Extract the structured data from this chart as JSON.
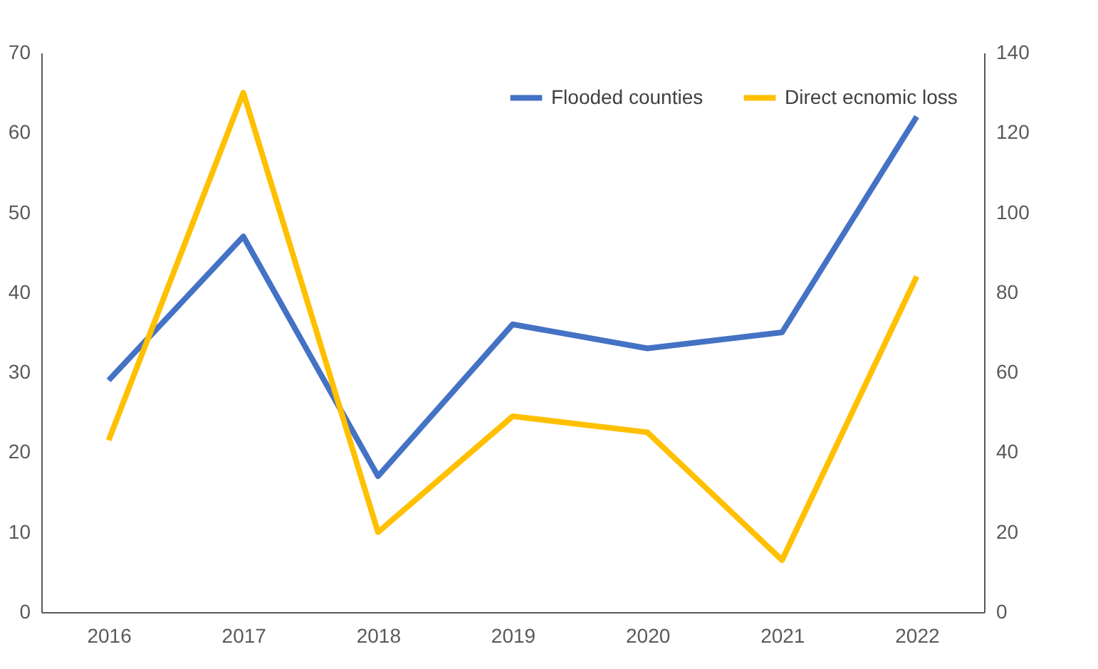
{
  "chart_data": {
    "type": "line",
    "categories": [
      "2016",
      "2017",
      "2018",
      "2019",
      "2020",
      "2021",
      "2022"
    ],
    "series": [
      {
        "name": "Flooded counties",
        "color": "#4472c4",
        "values": [
          29,
          47,
          17,
          36,
          33,
          35,
          62
        ]
      },
      {
        "name": "Direct ecnomic loss",
        "color": "#ffc000",
        "axis": "y2",
        "values": [
          43,
          130,
          20,
          49,
          45,
          13,
          84
        ]
      }
    ],
    "ylim": [
      0,
      70
    ],
    "yticks": [
      0,
      10,
      20,
      30,
      40,
      50,
      60,
      70
    ],
    "y2lim": [
      0,
      140
    ],
    "y2ticks": [
      0,
      20,
      40,
      60,
      80,
      100,
      120,
      140
    ],
    "grid": false,
    "legend": "top right",
    "marker": "none",
    "line_style": "solid"
  }
}
